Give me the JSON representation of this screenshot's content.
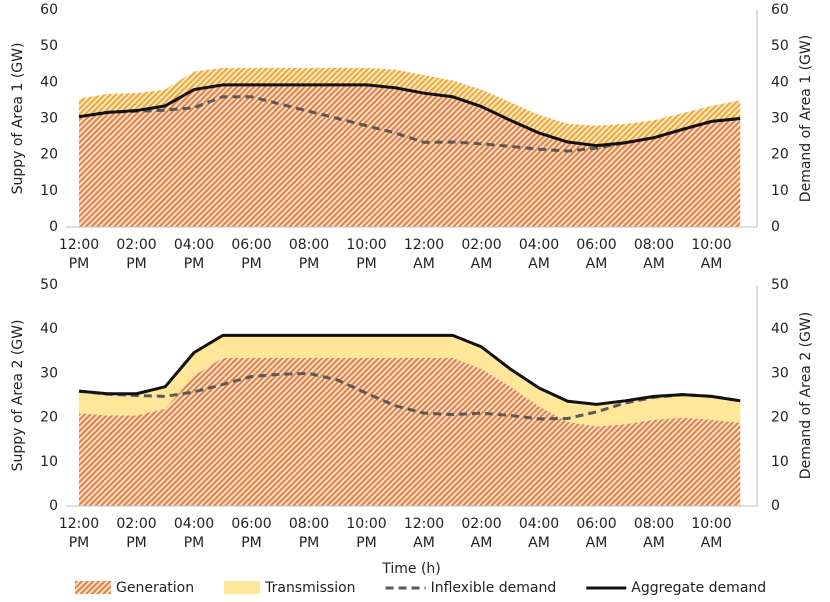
{
  "chart_data": [
    {
      "type": "area",
      "ylabel": "Suppy of Area 1 (GW)",
      "y2label": "Demand of Area 1 (GW)",
      "categories": [
        "12:00 PM",
        null,
        "02:00 PM",
        null,
        "04:00 PM",
        null,
        "06:00 PM",
        null,
        "08:00 PM",
        null,
        "10:00 PM",
        null,
        "12:00 AM",
        null,
        "02:00 AM",
        null,
        "04:00 AM",
        null,
        "06:00 AM",
        null,
        "08:00 AM",
        null,
        "10:00 AM",
        null
      ],
      "ylim": [
        0,
        60
      ],
      "yticks": [
        0,
        10,
        20,
        30,
        40,
        50,
        60
      ],
      "y2lim": [
        0,
        60
      ],
      "y2ticks": [
        0,
        10,
        20,
        30,
        40,
        50,
        60
      ],
      "series": [
        {
          "type": "area",
          "pattern": "hatch",
          "color": "#e3813f",
          "values": [
            30.5,
            31.7,
            32.2,
            33.5,
            38,
            39.3,
            39.3,
            39.3,
            39.3,
            39.3,
            39.3,
            38.5,
            37,
            36,
            33.3,
            29.5,
            26,
            23.5,
            22.5,
            23.3,
            24.7,
            27,
            29.2,
            30
          ]
        },
        {
          "type": "area",
          "pattern": "hatch",
          "color": "#f0a830",
          "values": [
            5,
            5.1,
            4.8,
            4.5,
            5,
            4.7,
            4.7,
            4.7,
            4.7,
            4.7,
            4.7,
            5,
            5,
            4.5,
            4.7,
            5,
            5,
            5,
            5.5,
            5.2,
            4.8,
            4.5,
            4.3,
            5
          ]
        },
        {
          "type": "line",
          "axis": "y2",
          "dash": true,
          "color": "#595959",
          "values": [
            30.5,
            31.7,
            32,
            32.3,
            33,
            36,
            36,
            34,
            32,
            30,
            28,
            26,
            23.4,
            23.5,
            23,
            22.3,
            21.5,
            21,
            21.8,
            23.3,
            24.7,
            27,
            29.2,
            30
          ]
        },
        {
          "type": "line",
          "axis": "y2",
          "color": "#111111",
          "values": [
            30.5,
            31.7,
            32.2,
            33.5,
            38,
            39.3,
            39.3,
            39.3,
            39.3,
            39.3,
            39.3,
            38.5,
            37,
            36,
            33.3,
            29.5,
            26,
            23.5,
            22.5,
            23.3,
            24.7,
            27,
            29.2,
            30
          ]
        }
      ]
    },
    {
      "type": "area",
      "xlabel": "Time (h)",
      "ylabel": "Suppy of Area 2 (GW)",
      "y2label": "Demand of Area 2 (GW)",
      "categories": [
        "12:00 PM",
        null,
        "02:00 PM",
        null,
        "04:00 PM",
        null,
        "06:00 PM",
        null,
        "08:00 PM",
        null,
        "10:00 PM",
        null,
        "12:00 AM",
        null,
        "02:00 AM",
        null,
        "04:00 AM",
        null,
        "06:00 AM",
        null,
        "08:00 AM",
        null,
        "10:00 AM",
        null
      ],
      "ylim": [
        0,
        50
      ],
      "yticks": [
        0,
        10,
        20,
        30,
        40,
        50
      ],
      "y2lim": [
        0,
        50
      ],
      "y2ticks": [
        0,
        10,
        20,
        30,
        40,
        50
      ],
      "series": [
        {
          "name": "Generation",
          "type": "area",
          "pattern": "hatch",
          "color": "#e3813f",
          "values": [
            21,
            20.5,
            20.5,
            22,
            29.5,
            33.5,
            33.5,
            33.5,
            33.5,
            33.5,
            33.5,
            33.5,
            33.5,
            33.5,
            31,
            27,
            22.5,
            19,
            18,
            18.5,
            19.5,
            20,
            19.5,
            18.8
          ]
        },
        {
          "name": "Transmission",
          "type": "area",
          "color": "#ffe699",
          "values": [
            5,
            4.9,
            4.9,
            5,
            5.2,
            5.1,
            5.1,
            5.1,
            5.1,
            5.1,
            5.1,
            5.1,
            5.1,
            5.1,
            5,
            4,
            4.2,
            4.7,
            5,
            5.3,
            5.3,
            5.2,
            5.3,
            5
          ]
        },
        {
          "name": "Inflexible demand",
          "type": "line",
          "axis": "y2",
          "dash": true,
          "color": "#595959",
          "values": [
            26,
            25.3,
            25,
            24.8,
            25.8,
            27.5,
            29.3,
            29.8,
            30,
            28.5,
            25.5,
            22.7,
            21,
            20.7,
            21,
            20.5,
            19.7,
            19.8,
            21.3,
            23.3,
            24.6,
            25.2,
            24.8,
            23.8
          ]
        },
        {
          "name": "Aggregate demand",
          "type": "line",
          "axis": "y2",
          "color": "#111111",
          "values": [
            26,
            25.4,
            25.4,
            27,
            34.7,
            38.6,
            38.6,
            38.6,
            38.6,
            38.6,
            38.6,
            38.6,
            38.6,
            38.6,
            36,
            31,
            26.7,
            23.7,
            23,
            23.8,
            24.8,
            25.2,
            24.8,
            23.8
          ]
        }
      ]
    }
  ]
}
